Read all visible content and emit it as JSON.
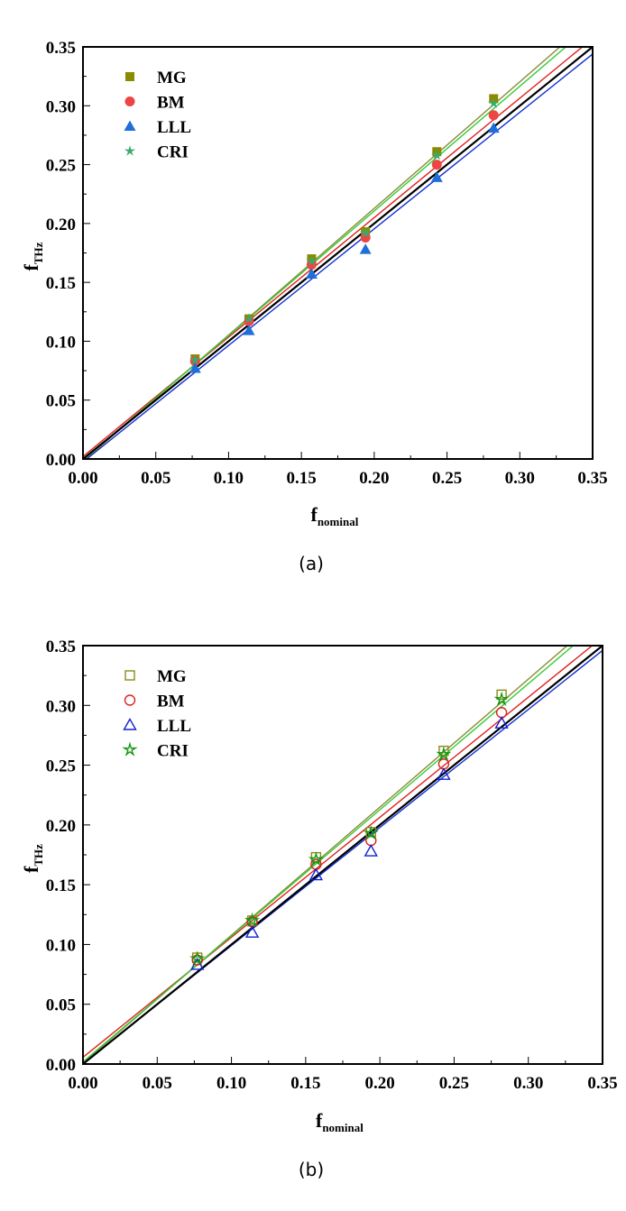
{
  "chart_data": [
    {
      "type": "scatter",
      "caption": "(a)",
      "xlabel": {
        "main": "f",
        "sub": "nominal"
      },
      "ylabel": {
        "main": "f",
        "sub": "THz"
      },
      "xlim": [
        0,
        0.35
      ],
      "ylim": [
        0,
        0.35
      ],
      "xticks": [
        "0.00",
        "0.05",
        "0.10",
        "0.15",
        "0.20",
        "0.25",
        "0.30",
        "0.35"
      ],
      "yticks": [
        "0.00",
        "0.05",
        "0.10",
        "0.15",
        "0.20",
        "0.25",
        "0.30",
        "0.35"
      ],
      "grid": false,
      "legend_position": "top-left",
      "marker_fill": "filled",
      "reference_line": {
        "slope": 1,
        "intercept": 0,
        "color": "#000000"
      },
      "x": [
        0.077,
        0.114,
        0.157,
        0.194,
        0.243,
        0.282
      ],
      "series": [
        {
          "name": "MG",
          "marker": "square",
          "color": "#8B8B00",
          "line_color": "#8B8B3A",
          "values": [
            0.085,
            0.119,
            0.17,
            0.193,
            0.261,
            0.306
          ]
        },
        {
          "name": "BM",
          "marker": "circle",
          "color": "#EE4444",
          "line_color": "#E02020",
          "values": [
            0.083,
            0.117,
            0.165,
            0.188,
            0.25,
            0.292
          ]
        },
        {
          "name": "LLL",
          "marker": "triangle",
          "color": "#1F6FD8",
          "line_color": "#1030D0",
          "values": [
            0.077,
            0.109,
            0.157,
            0.178,
            0.239,
            0.281
          ]
        },
        {
          "name": "CRI",
          "marker": "star",
          "color": "#3AAA6A",
          "line_color": "#33CC33",
          "values": [
            0.084,
            0.119,
            0.168,
            0.192,
            0.258,
            0.302
          ]
        }
      ]
    },
    {
      "type": "scatter",
      "caption": "(b)",
      "xlabel": {
        "main": "f",
        "sub": "nominal"
      },
      "ylabel": {
        "main": "f",
        "sub": "THz"
      },
      "xlim": [
        0,
        0.35
      ],
      "ylim": [
        0,
        0.35
      ],
      "xticks": [
        "0.00",
        "0.05",
        "0.10",
        "0.15",
        "0.20",
        "0.25",
        "0.30",
        "0.35"
      ],
      "yticks": [
        "0.00",
        "0.05",
        "0.10",
        "0.15",
        "0.20",
        "0.25",
        "0.30",
        "0.35"
      ],
      "grid": false,
      "legend_position": "top-left",
      "marker_fill": "hollow",
      "reference_line": {
        "slope": 1,
        "intercept": 0,
        "color": "#000000"
      },
      "x": [
        0.077,
        0.114,
        0.157,
        0.194,
        0.243,
        0.282
      ],
      "series": [
        {
          "name": "MG",
          "marker": "square",
          "color": "#8B8B1A",
          "line_color": "#8B8B3A",
          "values": [
            0.089,
            0.12,
            0.173,
            0.194,
            0.262,
            0.309
          ]
        },
        {
          "name": "BM",
          "marker": "circle",
          "color": "#E02020",
          "line_color": "#E02020",
          "values": [
            0.087,
            0.119,
            0.167,
            0.187,
            0.251,
            0.294
          ]
        },
        {
          "name": "LLL",
          "marker": "triangle",
          "color": "#1020D0",
          "line_color": "#1030D0",
          "values": [
            0.083,
            0.11,
            0.158,
            0.178,
            0.242,
            0.285
          ]
        },
        {
          "name": "CRI",
          "marker": "star",
          "color": "#119911",
          "line_color": "#33CC33",
          "values": [
            0.088,
            0.12,
            0.171,
            0.193,
            0.259,
            0.305
          ]
        }
      ]
    }
  ]
}
